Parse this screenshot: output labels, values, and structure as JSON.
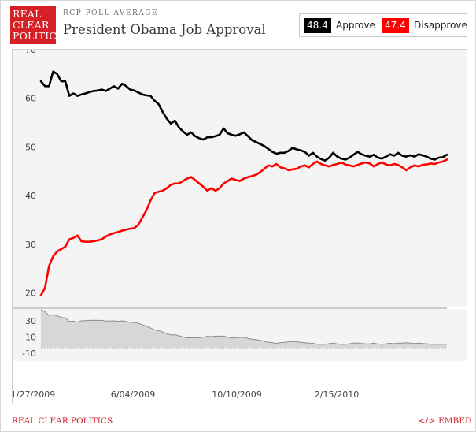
{
  "header": {
    "logo_lines": [
      "REAL",
      "CLEAR",
      "POLITICS"
    ],
    "subtitle": "RCP POLL AVERAGE",
    "title": "President Obama Job Approval"
  },
  "legend": {
    "approve_value": "48.4",
    "approve_label": "Approve",
    "disapprove_value": "47.4",
    "disapprove_label": "Disapprove"
  },
  "colors": {
    "approve": "#000000",
    "disapprove": "#ff0000",
    "spread_fill": "#d7d7d7",
    "spread_line": "#8c8c8c"
  },
  "footer": {
    "brand": "REAL CLEAR POLITICS",
    "embed_icon": "</>",
    "embed_label": "EMBED"
  },
  "chart_data": [
    {
      "type": "line",
      "title": "",
      "xlabel": "",
      "ylabel": "",
      "x_ticks": [
        "1/27/2009",
        "6/04/2009",
        "10/10/2009",
        "2/15/2010"
      ],
      "y_ticks": [
        20,
        30,
        40,
        50,
        60,
        70
      ],
      "ylim": [
        17,
        70
      ],
      "xlim_index": [
        0,
        100
      ],
      "grid": false,
      "legend_position": "top-right",
      "series": [
        {
          "name": "Approve",
          "x": [
            0,
            1,
            2,
            3,
            4,
            5,
            6,
            7,
            8,
            9,
            10,
            11,
            12,
            13,
            14,
            15,
            16,
            17,
            18,
            19,
            20,
            21,
            22,
            23,
            24,
            25,
            26,
            27,
            28,
            29,
            30,
            31,
            32,
            33,
            34,
            35,
            36,
            37,
            38,
            39,
            40,
            41,
            42,
            43,
            44,
            45,
            46,
            47,
            48,
            49,
            50,
            51,
            52,
            53,
            54,
            55,
            56,
            57,
            58,
            59,
            60,
            61,
            62,
            63,
            64,
            65,
            66,
            67,
            68,
            69,
            70,
            71,
            72,
            73,
            74,
            75,
            76,
            77,
            78,
            79,
            80,
            81,
            82,
            83,
            84,
            85,
            86,
            87,
            88,
            89,
            90,
            91,
            92,
            93,
            94,
            95,
            96,
            97,
            98,
            99,
            100
          ],
          "values": [
            63.5,
            62.5,
            62.5,
            65.5,
            65.0,
            63.5,
            63.5,
            60.5,
            61.0,
            60.5,
            60.8,
            61.0,
            61.3,
            61.5,
            61.6,
            61.8,
            61.5,
            62.0,
            62.5,
            62.0,
            63.0,
            62.5,
            61.8,
            61.6,
            61.2,
            60.8,
            60.6,
            60.5,
            59.5,
            58.8,
            57.2,
            55.8,
            54.8,
            55.4,
            54.0,
            53.2,
            52.5,
            53.0,
            52.2,
            51.8,
            51.5,
            52.0,
            52.0,
            52.2,
            52.5,
            53.8,
            52.8,
            52.5,
            52.3,
            52.6,
            53.0,
            52.2,
            51.4,
            51.0,
            50.6,
            50.2,
            49.6,
            49.0,
            48.6,
            48.8,
            48.8,
            49.2,
            49.8,
            49.5,
            49.3,
            49.0,
            48.2,
            48.8,
            48.0,
            47.5,
            47.2,
            47.8,
            48.8,
            48.0,
            47.6,
            47.4,
            47.8,
            48.4,
            49.0,
            48.5,
            48.2,
            48.0,
            48.4,
            47.8,
            47.6,
            48.0,
            48.5,
            48.2,
            48.8,
            48.2,
            48.0,
            48.3,
            48.0,
            48.5,
            48.3,
            48.0,
            47.6,
            47.4,
            47.8,
            47.9,
            48.4
          ]
        },
        {
          "name": "Disapprove",
          "x": [
            0,
            1,
            2,
            3,
            4,
            5,
            6,
            7,
            8,
            9,
            10,
            11,
            12,
            13,
            14,
            15,
            16,
            17,
            18,
            19,
            20,
            21,
            22,
            23,
            24,
            25,
            26,
            27,
            28,
            29,
            30,
            31,
            32,
            33,
            34,
            35,
            36,
            37,
            38,
            39,
            40,
            41,
            42,
            43,
            44,
            45,
            46,
            47,
            48,
            49,
            50,
            51,
            52,
            53,
            54,
            55,
            56,
            57,
            58,
            59,
            60,
            61,
            62,
            63,
            64,
            65,
            66,
            67,
            68,
            69,
            70,
            71,
            72,
            73,
            74,
            75,
            76,
            77,
            78,
            79,
            80,
            81,
            82,
            83,
            84,
            85,
            86,
            87,
            88,
            89,
            90,
            91,
            92,
            93,
            94,
            95,
            96,
            97,
            98,
            99,
            100
          ],
          "values": [
            19.5,
            21.0,
            25.5,
            27.5,
            28.5,
            29.0,
            29.5,
            31.0,
            31.3,
            31.8,
            30.6,
            30.5,
            30.5,
            30.6,
            30.8,
            31.0,
            31.6,
            32.0,
            32.3,
            32.5,
            32.8,
            33.0,
            33.2,
            33.3,
            34.0,
            35.5,
            37.0,
            39.0,
            40.5,
            40.8,
            41.0,
            41.5,
            42.2,
            42.5,
            42.5,
            43.0,
            43.5,
            43.8,
            43.2,
            42.5,
            41.8,
            41.0,
            41.5,
            41.0,
            41.5,
            42.5,
            43.0,
            43.5,
            43.2,
            43.0,
            43.5,
            43.8,
            44.0,
            44.3,
            44.8,
            45.5,
            46.2,
            46.0,
            46.5,
            45.8,
            45.6,
            45.2,
            45.4,
            45.5,
            46.0,
            46.2,
            45.8,
            46.5,
            47.0,
            46.5,
            46.2,
            46.0,
            46.3,
            46.5,
            46.8,
            46.4,
            46.2,
            46.0,
            46.3,
            46.6,
            46.8,
            46.6,
            46.0,
            46.5,
            46.8,
            46.4,
            46.2,
            46.5,
            46.3,
            45.8,
            45.2,
            45.8,
            46.2,
            46.0,
            46.3,
            46.4,
            46.6,
            46.5,
            46.8,
            47.0,
            47.4
          ]
        }
      ]
    },
    {
      "type": "area",
      "title": "",
      "xlabel": "",
      "ylabel": "",
      "y_ticks": [
        -10,
        10,
        30
      ],
      "ylim": [
        -20,
        45
      ],
      "grid": false,
      "series": [
        {
          "name": "",
          "x": [
            0,
            1,
            2,
            3,
            4,
            5,
            6,
            7,
            8,
            9,
            10,
            11,
            12,
            13,
            14,
            15,
            16,
            17,
            18,
            19,
            20,
            21,
            22,
            23,
            24,
            25,
            26,
            27,
            28,
            29,
            30,
            31,
            32,
            33,
            34,
            35,
            36,
            37,
            38,
            39,
            40,
            41,
            42,
            43,
            44,
            45,
            46,
            47,
            48,
            49,
            50,
            51,
            52,
            53,
            54,
            55,
            56,
            57,
            58,
            59,
            60,
            61,
            62,
            63,
            64,
            65,
            66,
            67,
            68,
            69,
            70,
            71,
            72,
            73,
            74,
            75,
            76,
            77,
            78,
            79,
            80,
            81,
            82,
            83,
            84,
            85,
            86,
            87,
            88,
            89,
            90,
            91,
            92,
            93,
            94,
            95,
            96,
            97,
            98,
            99,
            100
          ],
          "values": [
            44.0,
            41.5,
            37.0,
            38.0,
            36.5,
            34.5,
            34.0,
            29.5,
            29.7,
            28.7,
            30.2,
            30.5,
            30.8,
            30.9,
            30.8,
            30.8,
            29.9,
            30.0,
            30.2,
            29.5,
            30.2,
            29.5,
            28.6,
            28.3,
            27.2,
            25.3,
            23.6,
            21.5,
            19.0,
            18.0,
            16.2,
            14.3,
            12.6,
            12.9,
            11.5,
            10.2,
            9.0,
            9.2,
            9.0,
            9.3,
            9.7,
            11.0,
            10.5,
            11.2,
            11.0,
            11.3,
            9.8,
            9.0,
            9.1,
            9.6,
            9.5,
            8.4,
            7.4,
            6.7,
            5.8,
            4.7,
            3.4,
            3.0,
            2.1,
            3.0,
            3.2,
            4.0,
            4.4,
            4.0,
            3.3,
            2.8,
            2.4,
            2.3,
            1.0,
            1.0,
            1.0,
            1.8,
            2.5,
            1.5,
            0.8,
            1.0,
            1.6,
            2.4,
            2.7,
            1.9,
            1.4,
            1.4,
            2.4,
            1.3,
            0.8,
            1.6,
            2.3,
            1.7,
            2.5,
            2.4,
            2.8,
            2.5,
            1.8,
            2.5,
            2.0,
            1.6,
            1.0,
            0.9,
            1.0,
            0.9,
            1.0
          ]
        }
      ]
    }
  ]
}
